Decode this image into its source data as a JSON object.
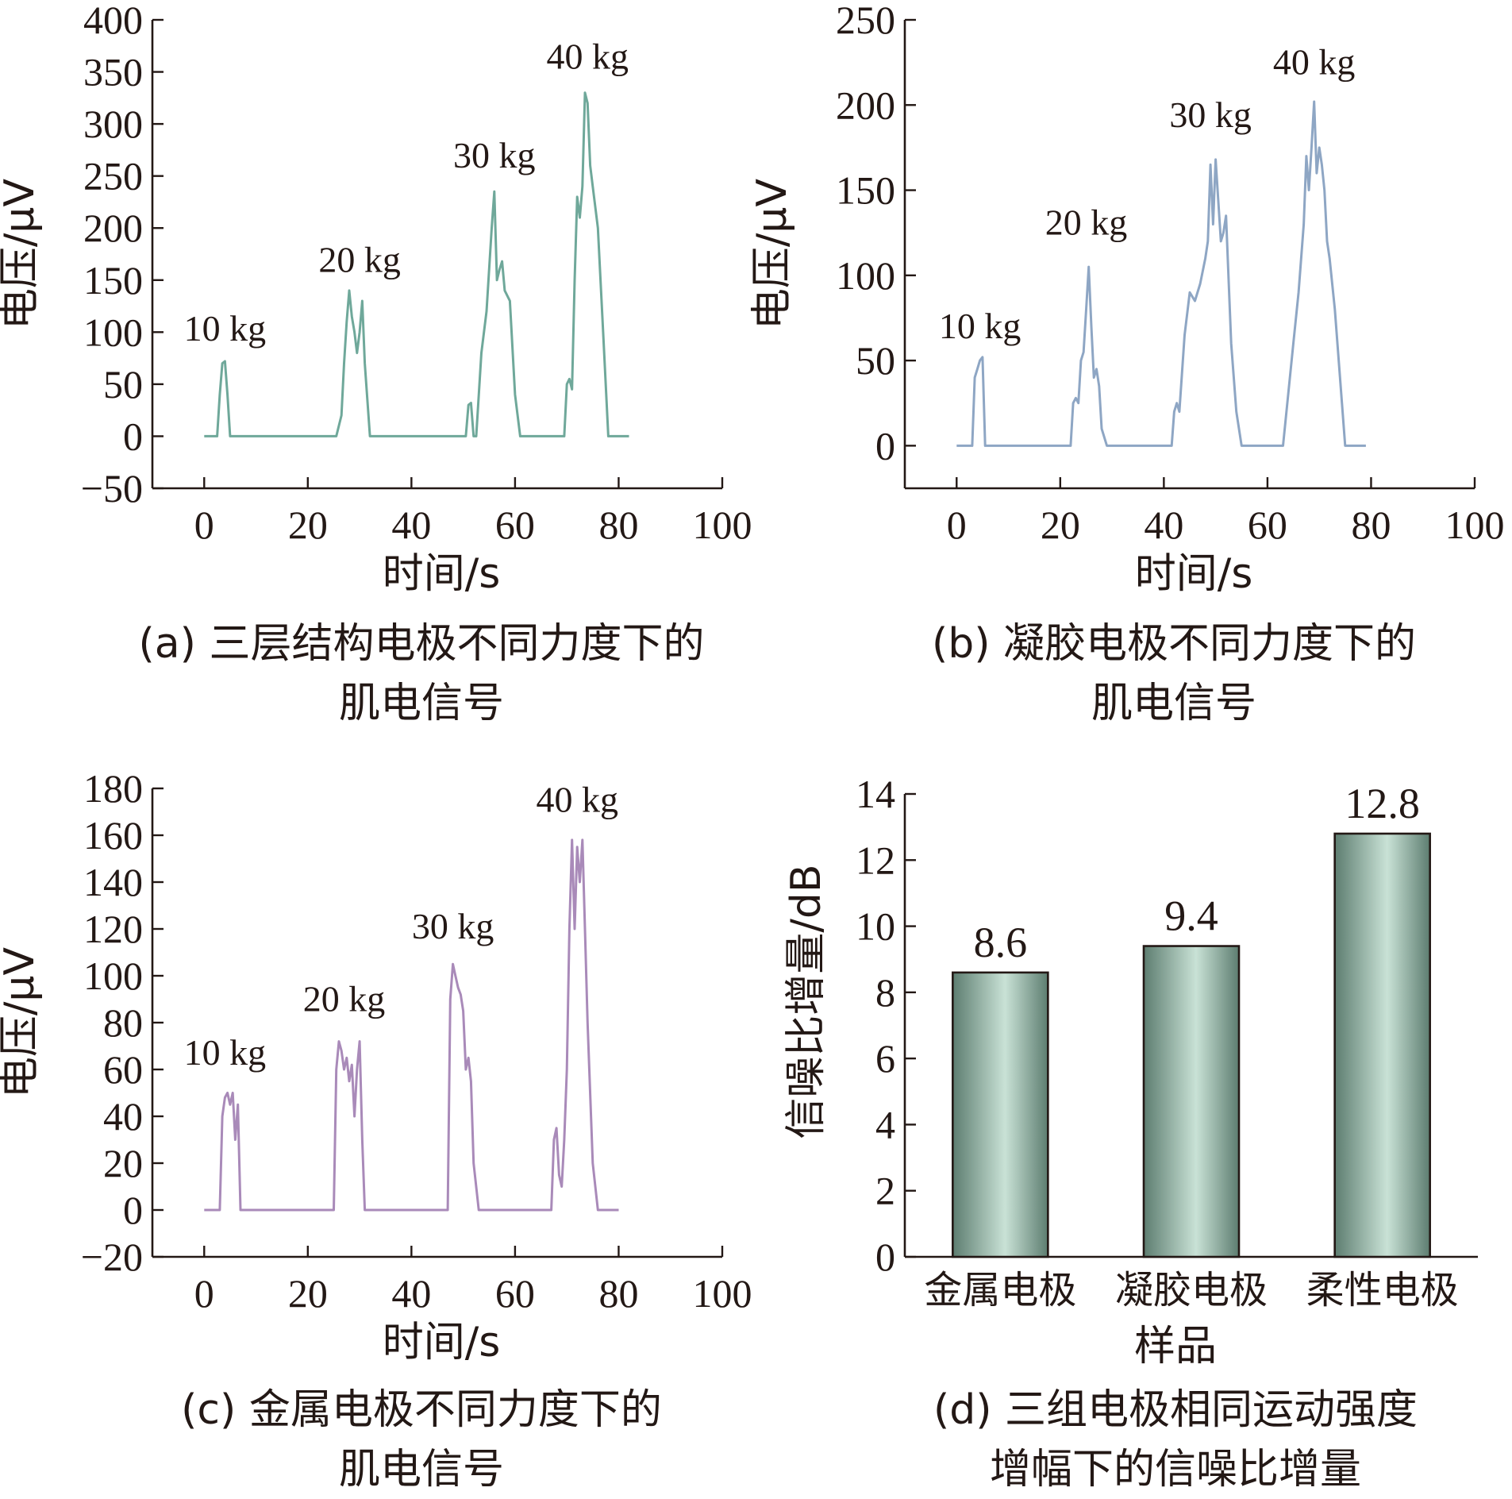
{
  "colors": {
    "axis": "#231815",
    "series_a": "#6fa89a",
    "series_b": "#8ea6c4",
    "series_c": "#a98ab9",
    "bar_dark": "#5d7d70",
    "bar_light": "#c9e2d6"
  },
  "chart_data": [
    {
      "id": "a",
      "type": "line",
      "ylabel": "电压/μV",
      "xlabel": "时间/s",
      "caption_lines": [
        "(a) 三层结构电极不同力度下的",
        "肌电信号"
      ],
      "xlim": [
        -10,
        100
      ],
      "ylim": [
        -50,
        400
      ],
      "xticks": [
        "0",
        "20",
        "40",
        "60",
        "80",
        "100"
      ],
      "yticks": [
        "−50",
        "0",
        "50",
        "100",
        "150",
        "200",
        "250",
        "300",
        "350",
        "400"
      ],
      "annotations": [
        {
          "text": "10 kg",
          "x": 4,
          "y": 92
        },
        {
          "text": "20 kg",
          "x": 30,
          "y": 158
        },
        {
          "text": "30 kg",
          "x": 56,
          "y": 258
        },
        {
          "text": "40 kg",
          "x": 74,
          "y": 353
        }
      ],
      "series": [
        {
          "x": [
            0,
            2.5,
            3,
            3.5,
            4,
            4.5,
            5,
            25.5,
            26.5,
            27,
            27.5,
            28,
            28.5,
            29,
            29.5,
            30,
            30.5,
            31,
            32,
            50.5,
            51,
            51.5,
            52,
            52.5,
            53.5,
            54.5,
            55.5,
            56,
            56.5,
            57,
            57.5,
            58,
            59,
            60,
            61,
            69.5,
            70,
            70.5,
            71,
            71.5,
            72,
            72.5,
            73,
            73.5,
            74,
            74.5,
            75,
            76,
            77,
            78,
            82
          ],
          "y": [
            0,
            0,
            40,
            70,
            72,
            40,
            0,
            0,
            20,
            70,
            110,
            140,
            115,
            100,
            80,
            100,
            130,
            70,
            0,
            0,
            30,
            32,
            0,
            0,
            80,
            120,
            200,
            235,
            150,
            160,
            168,
            140,
            130,
            40,
            0,
            0,
            50,
            55,
            45,
            150,
            230,
            210,
            240,
            330,
            320,
            260,
            240,
            200,
            100,
            0,
            0
          ]
        }
      ]
    },
    {
      "id": "b",
      "type": "line",
      "ylabel": "电压/μV",
      "xlabel": "时间/s",
      "caption_lines": [
        "(b) 凝胶电极不同力度下的",
        "肌电信号"
      ],
      "xlim": [
        -10,
        100
      ],
      "ylim": [
        -25,
        250
      ],
      "xticks": [
        "0",
        "20",
        "40",
        "60",
        "80",
        "100"
      ],
      "yticks": [
        "0",
        "50",
        "100",
        "150",
        "200",
        "250"
      ],
      "annotations": [
        {
          "text": "10 kg",
          "x": 4.5,
          "y": 63
        },
        {
          "text": "20 kg",
          "x": 25,
          "y": 124
        },
        {
          "text": "30 kg",
          "x": 49,
          "y": 187
        },
        {
          "text": "40 kg",
          "x": 69,
          "y": 218
        }
      ],
      "series": [
        {
          "x": [
            0,
            3,
            3.5,
            4,
            4.5,
            5,
            5.5,
            22,
            22.5,
            23,
            23.5,
            24,
            24.5,
            25,
            25.5,
            26,
            26.5,
            27,
            27.5,
            28,
            29,
            41.5,
            42,
            42.5,
            43,
            44,
            45,
            46,
            47,
            48,
            48.5,
            49,
            49.5,
            50,
            51,
            51.5,
            52,
            53,
            54,
            55,
            63,
            64,
            65,
            66,
            67,
            67.5,
            68,
            68.5,
            69,
            69.5,
            70,
            70.5,
            71,
            71.5,
            72,
            73,
            74,
            75,
            79
          ],
          "y": [
            0,
            0,
            40,
            45,
            50,
            52,
            0,
            0,
            25,
            28,
            25,
            50,
            55,
            80,
            105,
            70,
            40,
            45,
            35,
            10,
            0,
            0,
            20,
            25,
            20,
            65,
            90,
            85,
            95,
            110,
            120,
            165,
            130,
            168,
            120,
            125,
            135,
            60,
            20,
            0,
            0,
            30,
            60,
            90,
            130,
            170,
            150,
            175,
            202,
            160,
            175,
            165,
            150,
            120,
            110,
            80,
            40,
            0,
            0
          ]
        }
      ]
    },
    {
      "id": "c",
      "type": "line",
      "ylabel": "电压/μV",
      "xlabel": "时间/s",
      "caption_lines": [
        "(c) 金属电极不同力度下的",
        "肌电信号"
      ],
      "xlim": [
        -10,
        100
      ],
      "ylim": [
        -20,
        180
      ],
      "xticks": [
        "0",
        "20",
        "40",
        "60",
        "80",
        "100"
      ],
      "yticks": [
        "−20",
        "0",
        "20",
        "40",
        "60",
        "80",
        "100",
        "120",
        "140",
        "160",
        "180"
      ],
      "annotations": [
        {
          "text": "10 kg",
          "x": 4,
          "y": 62
        },
        {
          "text": "20 kg",
          "x": 27,
          "y": 85
        },
        {
          "text": "30 kg",
          "x": 48,
          "y": 116
        },
        {
          "text": "40 kg",
          "x": 72,
          "y": 170
        }
      ],
      "series": [
        {
          "x": [
            0,
            3,
            3.5,
            4,
            4.5,
            5,
            5.5,
            6,
            6.5,
            7,
            25,
            25.5,
            26,
            26.5,
            27,
            27.5,
            28,
            28.5,
            29,
            29.5,
            30,
            30.5,
            31,
            47,
            47.5,
            48,
            48.5,
            49,
            49.5,
            50,
            50.5,
            51,
            51.5,
            52,
            53,
            67,
            67.5,
            68,
            68.5,
            69,
            69.5,
            70,
            70.5,
            71,
            71.5,
            72,
            72.5,
            73,
            73.5,
            74,
            75,
            76,
            80
          ],
          "y": [
            0,
            0,
            40,
            48,
            50,
            45,
            50,
            30,
            45,
            0,
            0,
            60,
            72,
            68,
            60,
            65,
            55,
            62,
            40,
            60,
            72,
            30,
            0,
            0,
            90,
            105,
            100,
            95,
            92,
            85,
            60,
            65,
            55,
            20,
            0,
            0,
            30,
            35,
            15,
            10,
            30,
            60,
            120,
            158,
            120,
            155,
            140,
            158,
            120,
            80,
            20,
            0,
            0
          ]
        }
      ]
    },
    {
      "id": "d",
      "type": "bar",
      "ylabel": "信噪比增量/dB",
      "xlabel": "样品",
      "caption_lines": [
        "(d) 三组电极相同运动强度",
        "增幅下的信噪比增量"
      ],
      "categories": [
        "金属电极",
        "凝胶电极",
        "柔性电极"
      ],
      "values": [
        8.6,
        9.4,
        12.8
      ],
      "value_labels": [
        "8.6",
        "9.4",
        "12.8"
      ],
      "ylim": [
        0,
        14
      ],
      "yticks": [
        "0",
        "2",
        "4",
        "6",
        "8",
        "10",
        "12",
        "14"
      ]
    }
  ]
}
